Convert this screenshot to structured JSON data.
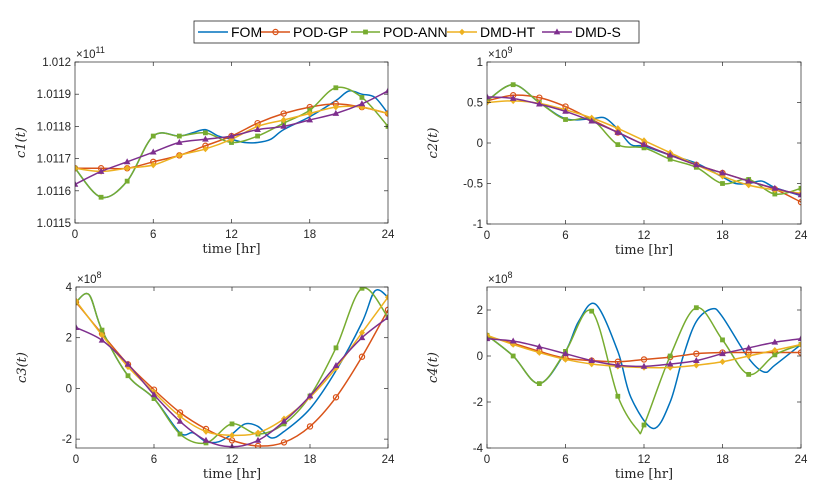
{
  "legend": {
    "placement": "top-center",
    "entries": [
      "FOM",
      "POD-GP",
      "POD-ANN",
      "DMD-HT",
      "DMD-S"
    ]
  },
  "series_style": [
    {
      "name": "FOM",
      "color": "#0072BD",
      "marker": "none"
    },
    {
      "name": "POD-GP",
      "color": "#D95319",
      "marker": "circle"
    },
    {
      "name": "POD-ANN",
      "color": "#77AC30",
      "marker": "square"
    },
    {
      "name": "DMD-HT",
      "color": "#EDB120",
      "marker": "diamond"
    },
    {
      "name": "DMD-S",
      "color": "#7E2F8E",
      "marker": "triangle"
    }
  ],
  "chart_data": [
    {
      "type": "line",
      "title": "",
      "xlabel": "time [hr]",
      "ylabel": "c1(t)",
      "ylabel_sub": "1",
      "exponent": "11",
      "xlim": [
        0,
        24
      ],
      "ylim": [
        1.0115,
        1.012
      ],
      "xticks": [
        0,
        6,
        12,
        18,
        24
      ],
      "xtick_labels": [
        "0",
        "6",
        "12",
        "18",
        "24"
      ],
      "yticks": [
        1.0115,
        1.0116,
        1.0117,
        1.0118,
        1.0119,
        1.012
      ],
      "ytick_labels": [
        "1.0115",
        "1.0116",
        "1.0117",
        "1.0118",
        "1.0119",
        "1.012"
      ],
      "series": [
        {
          "name": "FOM",
          "x": [
            0,
            2,
            4,
            6,
            8,
            9,
            10,
            11,
            12,
            13,
            14,
            15,
            16,
            18,
            20,
            21,
            22,
            23,
            24
          ],
          "y": [
            1.01167,
            1.01158,
            1.01163,
            1.01177,
            1.01177,
            1.01178,
            1.01179,
            1.01177,
            1.01176,
            1.01175,
            1.01175,
            1.01176,
            1.01179,
            1.01183,
            1.01188,
            1.01191,
            1.0119,
            1.01189,
            1.01184
          ]
        },
        {
          "name": "POD-GP",
          "x": [
            0,
            2,
            4,
            6,
            8,
            10,
            12,
            14,
            16,
            18,
            20,
            22,
            24
          ],
          "y": [
            1.01167,
            1.01167,
            1.01167,
            1.01169,
            1.01171,
            1.01174,
            1.01177,
            1.01181,
            1.01184,
            1.01186,
            1.01187,
            1.01186,
            1.01184
          ]
        },
        {
          "name": "POD-ANN",
          "x": [
            0,
            2,
            4,
            6,
            8,
            10,
            12,
            14,
            16,
            18,
            20,
            22,
            24
          ],
          "y": [
            1.01167,
            1.01158,
            1.01163,
            1.01177,
            1.01177,
            1.01178,
            1.01175,
            1.01177,
            1.01181,
            1.01185,
            1.01192,
            1.01189,
            1.0118
          ]
        },
        {
          "name": "DMD-HT",
          "x": [
            0,
            2,
            4,
            6,
            8,
            10,
            12,
            14,
            16,
            18,
            20,
            22,
            24
          ],
          "y": [
            1.01167,
            1.01166,
            1.01167,
            1.01168,
            1.01171,
            1.01173,
            1.01176,
            1.0118,
            1.01182,
            1.01184,
            1.01186,
            1.01186,
            1.01184
          ]
        },
        {
          "name": "DMD-S",
          "x": [
            0,
            2,
            4,
            6,
            8,
            10,
            12,
            14,
            16,
            18,
            20,
            22,
            24
          ],
          "y": [
            1.01162,
            1.01166,
            1.01169,
            1.01172,
            1.01175,
            1.01176,
            1.01177,
            1.01179,
            1.0118,
            1.01182,
            1.01184,
            1.01187,
            1.01191
          ]
        }
      ]
    },
    {
      "type": "line",
      "title": "",
      "xlabel": "time [hr]",
      "ylabel": "c2(t)",
      "ylabel_sub": "2",
      "exponent": "9",
      "xlim": [
        0,
        24
      ],
      "ylim": [
        -1,
        1
      ],
      "xticks": [
        0,
        6,
        12,
        18,
        24
      ],
      "xtick_labels": [
        "0",
        "6",
        "12",
        "18",
        "24"
      ],
      "yticks": [
        -1,
        -0.5,
        0,
        0.5,
        1
      ],
      "ytick_labels": [
        "-1",
        "-0.5",
        "0",
        "0.5",
        "1"
      ],
      "series": [
        {
          "name": "FOM",
          "x": [
            0,
            2,
            4,
            6,
            8,
            9,
            10,
            11,
            12,
            14,
            16,
            18,
            19,
            20,
            21,
            22,
            24
          ],
          "y": [
            0.52,
            0.72,
            0.5,
            0.3,
            0.3,
            0.31,
            0.17,
            -0.02,
            -0.04,
            -0.15,
            -0.25,
            -0.42,
            -0.5,
            -0.5,
            -0.47,
            -0.55,
            -0.65
          ]
        },
        {
          "name": "POD-GP",
          "x": [
            0,
            2,
            4,
            6,
            8,
            10,
            12,
            14,
            16,
            18,
            20,
            22,
            24
          ],
          "y": [
            0.52,
            0.59,
            0.56,
            0.45,
            0.29,
            0.13,
            -0.02,
            -0.15,
            -0.27,
            -0.37,
            -0.47,
            -0.57,
            -0.73
          ]
        },
        {
          "name": "POD-ANN",
          "x": [
            0,
            2,
            4,
            6,
            8,
            10,
            12,
            14,
            16,
            18,
            20,
            22,
            24
          ],
          "y": [
            0.52,
            0.72,
            0.5,
            0.29,
            0.29,
            -0.02,
            -0.06,
            -0.2,
            -0.3,
            -0.5,
            -0.45,
            -0.63,
            -0.56
          ]
        },
        {
          "name": "DMD-HT",
          "x": [
            0,
            2,
            4,
            6,
            8,
            10,
            12,
            14,
            16,
            18,
            20,
            22,
            24
          ],
          "y": [
            0.5,
            0.52,
            0.49,
            0.41,
            0.31,
            0.18,
            0.03,
            -0.12,
            -0.27,
            -0.41,
            -0.52,
            -0.58,
            -0.62
          ]
        },
        {
          "name": "DMD-S",
          "x": [
            0,
            2,
            4,
            6,
            8,
            10,
            12,
            14,
            16,
            18,
            20,
            22,
            24
          ],
          "y": [
            0.57,
            0.55,
            0.48,
            0.39,
            0.27,
            0.13,
            -0.02,
            -0.15,
            -0.27,
            -0.37,
            -0.47,
            -0.56,
            -0.64
          ]
        }
      ]
    },
    {
      "type": "line",
      "title": "",
      "xlabel": "time [hr]",
      "ylabel": "c3(t)",
      "ylabel_sub": "3",
      "exponent": "8",
      "xlim": [
        0,
        24
      ],
      "ylim": [
        -2.35,
        4
      ],
      "xticks": [
        0,
        6,
        12,
        18,
        24
      ],
      "xtick_labels": [
        "0",
        "6",
        "12",
        "18",
        "24"
      ],
      "yticks": [
        -2,
        0,
        2,
        4
      ],
      "ytick_labels": [
        "-2",
        "0",
        "2",
        "4"
      ],
      "series": [
        {
          "name": "FOM",
          "x": [
            0,
            1,
            2,
            4,
            6,
            8,
            9,
            10,
            11,
            12,
            13,
            14,
            15,
            16,
            18,
            20,
            22,
            23,
            24
          ],
          "y": [
            3.4,
            3.7,
            2.3,
            0.5,
            -0.4,
            -1.75,
            -1.75,
            -2.1,
            -2.1,
            -1.8,
            -1.4,
            -1.5,
            -1.95,
            -1.7,
            -0.8,
            0.7,
            2.6,
            3.85,
            3.6
          ]
        },
        {
          "name": "POD-GP",
          "x": [
            0,
            2,
            4,
            6,
            8,
            10,
            12,
            14,
            16,
            18,
            20,
            22,
            24
          ],
          "y": [
            3.4,
            2.15,
            0.95,
            -0.05,
            -0.95,
            -1.6,
            -2.05,
            -2.27,
            -2.13,
            -1.5,
            -0.35,
            1.25,
            3.1
          ]
        },
        {
          "name": "POD-ANN",
          "x": [
            0,
            1,
            2,
            4,
            6,
            8,
            10,
            12,
            14,
            16,
            18,
            20,
            22,
            24
          ],
          "y": [
            3.4,
            3.7,
            2.3,
            0.5,
            -0.4,
            -1.8,
            -2.15,
            -1.4,
            -1.8,
            -1.4,
            -0.3,
            1.6,
            3.95,
            2.8
          ]
        },
        {
          "name": "DMD-HT",
          "x": [
            0,
            2,
            4,
            6,
            8,
            10,
            12,
            14,
            16,
            18,
            20,
            22,
            24
          ],
          "y": [
            3.45,
            2.1,
            0.85,
            -0.15,
            -1.1,
            -1.7,
            -1.85,
            -1.75,
            -1.2,
            -0.35,
            0.8,
            2.2,
            3.6
          ]
        },
        {
          "name": "DMD-S",
          "x": [
            0,
            2,
            4,
            6,
            8,
            10,
            12,
            14,
            16,
            18,
            20,
            22,
            24
          ],
          "y": [
            2.4,
            1.9,
            0.95,
            -0.25,
            -1.3,
            -2.05,
            -2.3,
            -2.05,
            -1.3,
            -0.3,
            0.9,
            2.0,
            2.8
          ]
        }
      ]
    },
    {
      "type": "line",
      "title": "",
      "xlabel": "time [hr]",
      "ylabel": "c4(t)",
      "ylabel_sub": "4",
      "exponent": "8",
      "xlim": [
        0,
        24
      ],
      "ylim": [
        -4,
        3
      ],
      "xticks": [
        0,
        6,
        12,
        18,
        24
      ],
      "xtick_labels": [
        "0",
        "6",
        "12",
        "18",
        "24"
      ],
      "yticks": [
        -4,
        -2,
        0,
        2
      ],
      "ytick_labels": [
        "-4",
        "-2",
        "0",
        "2"
      ],
      "series": [
        {
          "name": "FOM",
          "x": [
            0,
            2,
            4,
            6,
            7,
            8.3,
            10,
            11,
            12.7,
            14,
            15,
            16,
            17.2,
            18,
            20,
            21.2,
            22,
            24
          ],
          "y": [
            0.9,
            0,
            -1.2,
            0.2,
            1.5,
            2.25,
            0.2,
            -1.8,
            -3.15,
            -2.0,
            0,
            1.5,
            2.05,
            1.7,
            -0.1,
            -0.7,
            -0.4,
            0.5
          ]
        },
        {
          "name": "POD-GP",
          "x": [
            0,
            2,
            4,
            6,
            8,
            10,
            12,
            14,
            16,
            18,
            20,
            22,
            24
          ],
          "y": [
            0.85,
            0.55,
            0.2,
            -0.1,
            -0.2,
            -0.25,
            -0.15,
            -0.05,
            0.1,
            0.15,
            0.15,
            0.15,
            0.15
          ]
        },
        {
          "name": "POD-ANN",
          "x": [
            0,
            2,
            4,
            6,
            8,
            10,
            11.5,
            12,
            14,
            16,
            18,
            20,
            22,
            24
          ],
          "y": [
            0.9,
            0,
            -1.2,
            0.2,
            1.95,
            -1.75,
            -3.2,
            -3.0,
            0,
            2.1,
            0.7,
            -0.8,
            0.05,
            0.5
          ]
        },
        {
          "name": "DMD-HT",
          "x": [
            0,
            2,
            4,
            6,
            8,
            10,
            12,
            14,
            16,
            18,
            20,
            22,
            24
          ],
          "y": [
            0.9,
            0.5,
            0.15,
            -0.15,
            -0.35,
            -0.45,
            -0.5,
            -0.5,
            -0.4,
            -0.25,
            0,
            0.25,
            0.5
          ]
        },
        {
          "name": "DMD-S",
          "x": [
            0,
            2,
            4,
            6,
            8,
            10,
            12,
            14,
            16,
            18,
            20,
            22,
            24
          ],
          "y": [
            0.75,
            0.65,
            0.4,
            0.1,
            -0.2,
            -0.4,
            -0.45,
            -0.35,
            -0.2,
            0.1,
            0.35,
            0.6,
            0.75
          ]
        }
      ]
    }
  ]
}
